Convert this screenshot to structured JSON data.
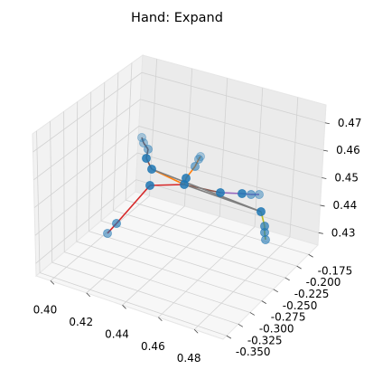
{
  "chart_data": {
    "type": "scatter",
    "title": "Hand: Expand",
    "xlabel": "",
    "ylabel": "",
    "zlabel": "",
    "xlim": [
      0.395,
      0.49
    ],
    "ylim": [
      -0.35,
      -0.175
    ],
    "zlim": [
      0.425,
      0.475
    ],
    "grid": true,
    "x_ticks": [
      "0.40",
      "0.42",
      "0.44",
      "0.46",
      "0.48"
    ],
    "y_ticks": [
      "-0.350",
      "-0.325",
      "-0.300",
      "-0.275",
      "-0.250",
      "-0.225",
      "-0.200",
      "-0.175"
    ],
    "z_ticks": [
      "0.43",
      "0.44",
      "0.45",
      "0.46",
      "0.47"
    ],
    "point_color": "#1f77b4",
    "edge_colors": [
      "#d62728",
      "#ff7f0e",
      "#8c564b",
      "#9467bd",
      "#bcbd22",
      "#7f7f7f"
    ],
    "points_screen_note": "",
    "fingers": [
      {
        "color": "#d62728"
      },
      {
        "color": "#ff7f0e"
      },
      {
        "color": "#8c564b"
      },
      {
        "color": "#9467bd"
      },
      {
        "color": "#bcbd22"
      }
    ]
  }
}
